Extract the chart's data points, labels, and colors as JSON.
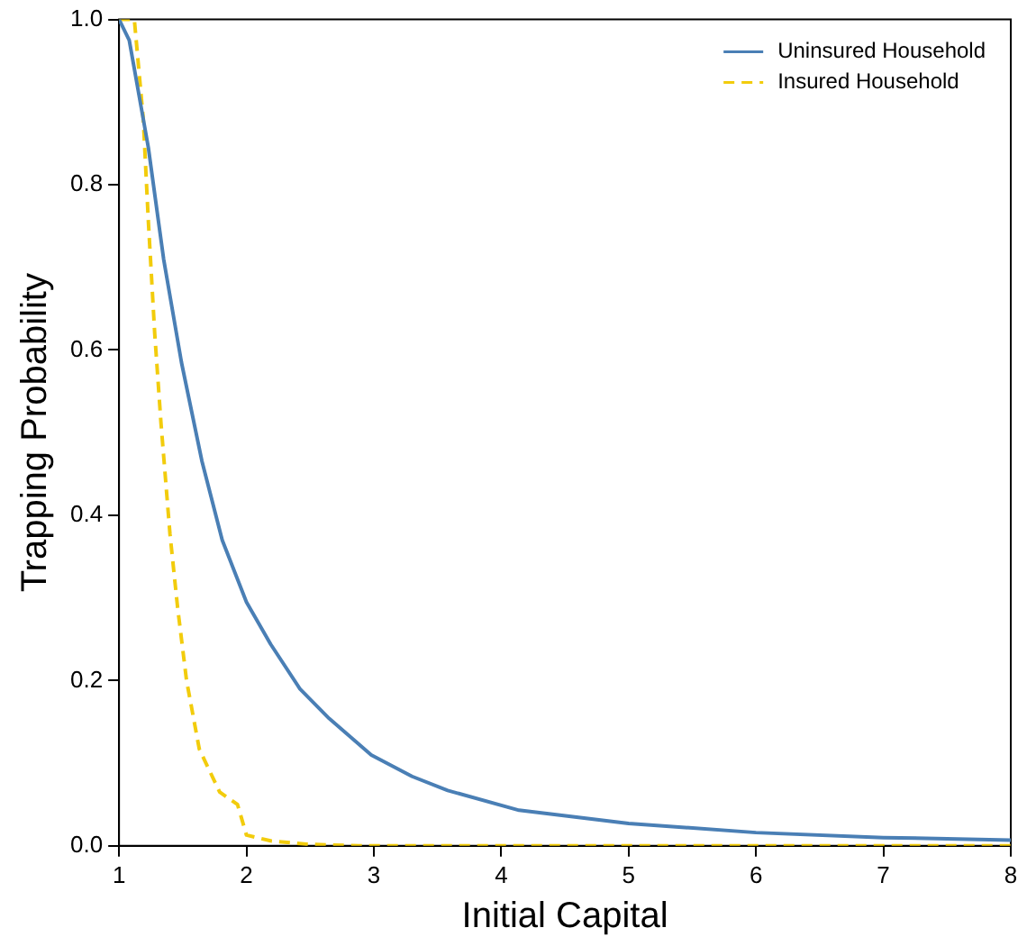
{
  "chart_data": {
    "type": "line",
    "xlabel": "Initial Capital",
    "ylabel": "Trapping Probability",
    "xlim": [
      1,
      8
    ],
    "xticks": [
      1,
      2,
      3,
      4,
      5,
      6,
      7,
      8
    ],
    "ylim": [
      0,
      1
    ],
    "yticks": [
      {
        "value": 0,
        "label": "0.0"
      },
      0.2,
      0.4,
      0.6,
      0.8,
      {
        "value": 1,
        "label": "1.0"
      }
    ],
    "grid": false,
    "legend": "top right",
    "marker": "none",
    "series": [
      {
        "name": "Uninsured Household",
        "color": "#4a7fb5",
        "line_style": "solid",
        "x": [
          1,
          1.08,
          1.23,
          1.35,
          1.49,
          1.65,
          1.81,
          2,
          2.19,
          2.42,
          2.65,
          2.98,
          3.3,
          3.58,
          4.14,
          5,
          6,
          7,
          8
        ],
        "values": [
          1,
          0.975,
          0.845,
          0.71,
          0.585,
          0.466,
          0.37,
          0.295,
          0.244,
          0.19,
          0.154,
          0.11,
          0.084,
          0.067,
          0.043,
          0.027,
          0.016,
          0.01,
          0.007
        ]
      },
      {
        "name": "Insured Household",
        "color": "#f2cc0c",
        "line_style": "dashed",
        "x": [
          1,
          1.12,
          1.19,
          1.23,
          1.28,
          1.33,
          1.4,
          1.46,
          1.53,
          1.63,
          1.79,
          1.93,
          2,
          2.19,
          2.47,
          2.88,
          4,
          5,
          6,
          7,
          8
        ],
        "values": [
          1,
          1,
          0.88,
          0.756,
          0.62,
          0.51,
          0.377,
          0.288,
          0.2,
          0.117,
          0.065,
          0.05,
          0.013,
          0.006,
          0.002,
          0,
          0,
          0,
          0,
          0,
          0
        ]
      }
    ]
  }
}
